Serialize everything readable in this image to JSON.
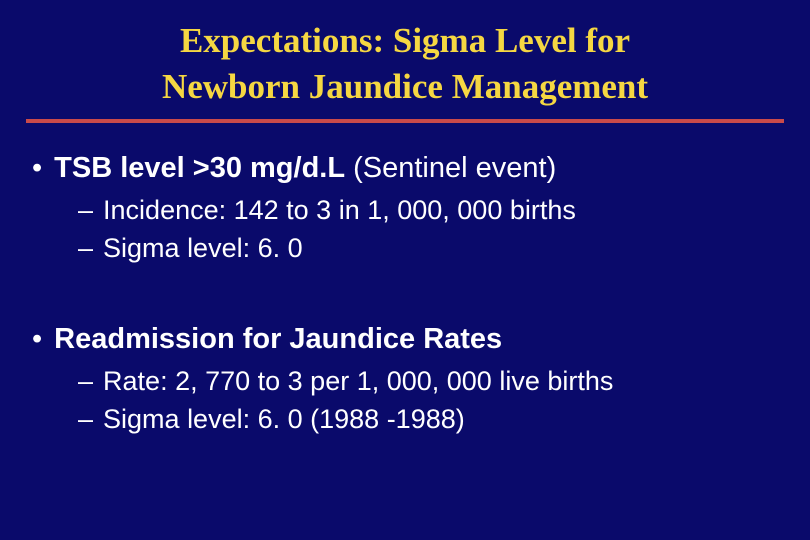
{
  "title_line1": "Expectations: Sigma Level for",
  "title_line2": "Newborn Jaundice Management",
  "section1": {
    "bullet_bold": "TSB level >30 mg/d.L",
    "bullet_rest": " (Sentinel event)",
    "sub1": "Incidence: 142  to 3 in 1, 000, 000 births",
    "sub2": "Sigma level: 6. 0"
  },
  "section2": {
    "bullet_bold": "Readmission for Jaundice Rates",
    "bullet_rest": "",
    "sub1": "Rate: 2, 770 to 3 per 1, 000, 000 live births",
    "sub2": "Sigma level: 6. 0 (1988 -1988)"
  },
  "colors": {
    "background": "#0a0a6b",
    "title": "#f5d742",
    "underline": "#c94a4a",
    "text": "#ffffff"
  }
}
